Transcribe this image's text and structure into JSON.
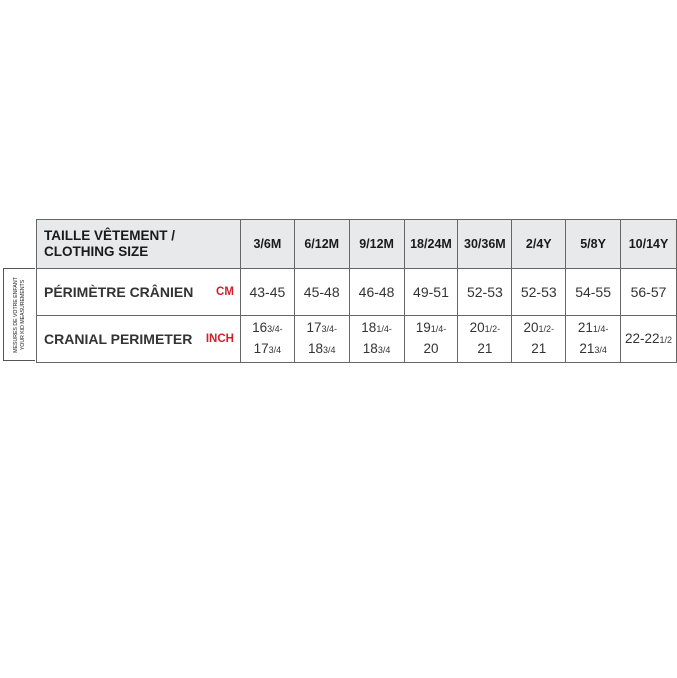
{
  "side_label": {
    "line1": "MESURES DE VOTRE ENFANT",
    "line2": "YOUR KID MEASUREMENTS"
  },
  "header": {
    "title_line1": "TAILLE VÊTEMENT /",
    "title_line2": "CLOTHING SIZE",
    "sizes": [
      "3/6M",
      "6/12M",
      "9/12M",
      "18/24M",
      "30/36M",
      "2/4Y",
      "5/8Y",
      "10/14Y"
    ]
  },
  "rows": [
    {
      "label": "PÉRIMÈTRE CRÂNIEN",
      "unit": "CM",
      "values": [
        "43-45",
        "45-48",
        "46-48",
        "49-51",
        "52-53",
        "52-53",
        "54-55",
        "56-57"
      ]
    },
    {
      "label": "CRANIAL PERIMETER",
      "unit": "INCH",
      "values": [
        [
          {
            "n": "16",
            "f": "3/4-"
          },
          {
            "n": "17",
            "f": "3/4"
          }
        ],
        [
          {
            "n": "17",
            "f": "3/4-"
          },
          {
            "n": "18",
            "f": "3/4"
          }
        ],
        [
          {
            "n": "18",
            "f": "1/4-"
          },
          {
            "n": "18",
            "f": "3/4"
          }
        ],
        [
          {
            "n": "19",
            "f": "1/4-"
          },
          {
            "n": "20",
            "f": ""
          }
        ],
        [
          {
            "n": "20",
            "f": "1/2-"
          },
          {
            "n": "21",
            "f": ""
          }
        ],
        [
          {
            "n": "20",
            "f": "1/2-"
          },
          {
            "n": "21",
            "f": ""
          }
        ],
        [
          {
            "n": "21",
            "f": "1/4-"
          },
          {
            "n": "21",
            "f": "3/4"
          }
        ],
        [
          {
            "n": "22-22",
            "f": "1/2"
          }
        ]
      ]
    }
  ],
  "colors": {
    "header_bg": "#e8e9eb",
    "unit_red": "#d41f2b"
  }
}
